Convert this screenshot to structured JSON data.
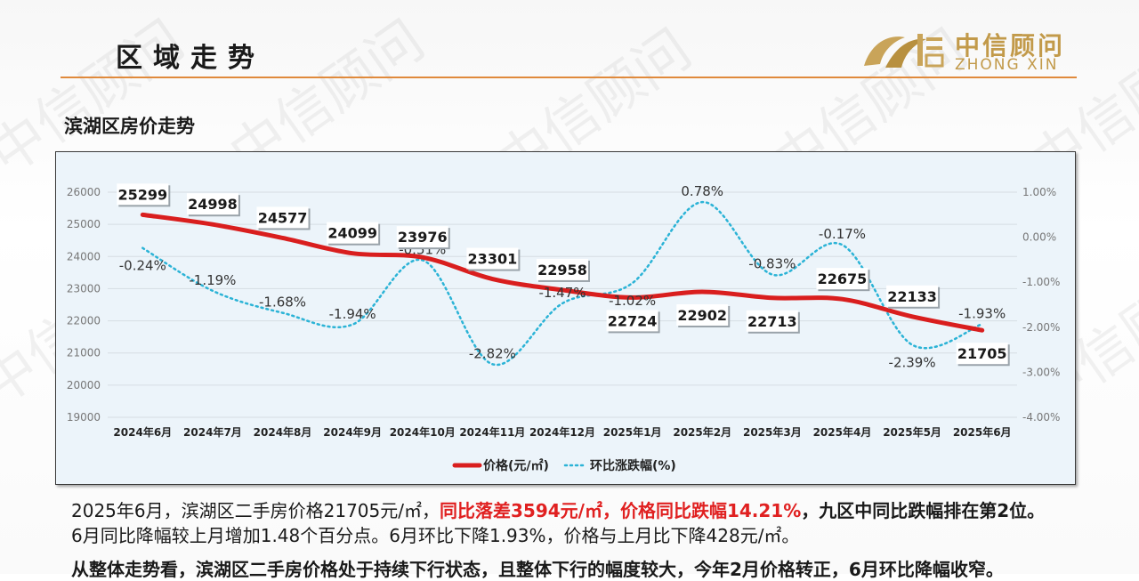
{
  "header": {
    "title": "区域走势",
    "logo_cn": "中信顾问",
    "logo_en": "ZHONG XIN",
    "watermark": "中信顾问"
  },
  "subtitle": "滨湖区房价走势",
  "chart_data": {
    "type": "line",
    "categories": [
      "2024年6月",
      "2024年7月",
      "2024年8月",
      "2024年9月",
      "2024年10月",
      "2024年11月",
      "2024年12月",
      "2025年1月",
      "2025年2月",
      "2025年3月",
      "2025年4月",
      "2025年5月",
      "2025年6月"
    ],
    "series": [
      {
        "name": "价格(元/㎡)",
        "axis": "left",
        "style": "solid",
        "color": "#d91e1e",
        "values": [
          25299,
          24998,
          24577,
          24099,
          23976,
          23301,
          22958,
          22724,
          22902,
          22713,
          22675,
          22133,
          21705
        ]
      },
      {
        "name": "环比涨跌幅(%)",
        "axis": "right",
        "style": "dotted",
        "color": "#2bb3d6",
        "values": [
          -0.24,
          -1.19,
          -1.68,
          -1.94,
          -0.51,
          -2.82,
          -1.47,
          -1.02,
          0.78,
          -0.83,
          -0.17,
          -2.39,
          -1.93
        ]
      }
    ],
    "price_labels": [
      "25299",
      "24998",
      "24577",
      "24099",
      "23976",
      "23301",
      "22958",
      "22724",
      "22902",
      "22713",
      "22675",
      "22133",
      "21705"
    ],
    "pct_labels": [
      "-0.24%",
      "-1.19%",
      "-1.68%",
      "-1.94%",
      "-0.51%",
      "-2.82%",
      "-1.47%",
      "-1.02%",
      "0.78%",
      "-0.83%",
      "-0.17%",
      "-2.39%",
      "-1.93%"
    ],
    "y_left": {
      "ylim": [
        19000,
        26000
      ],
      "ticks": [
        "19000",
        "20000",
        "21000",
        "22000",
        "23000",
        "24000",
        "25000",
        "26000"
      ]
    },
    "y_right": {
      "ylim": [
        -4.0,
        1.0
      ],
      "ticks": [
        "-4.00%",
        "-3.00%",
        "-2.00%",
        "-1.00%",
        "0.00%",
        "1.00%"
      ]
    },
    "legend_position": "bottom",
    "grid": true
  },
  "text": {
    "line1_part1": "2025年6月，滨湖区二手房价格21705元/㎡，",
    "line1_red": "同比落差3594元/㎡，价格同比跌幅14.21%",
    "line1_part2": "，九区中同比跌幅排在第2位。",
    "line2": "6月同比降幅较上月增加1.48个百分点。6月环比下降1.93%，价格与上月比下降428元/㎡。",
    "summary": "从整体走势看，滨湖区二手房价格处于持续下行状态，且整体下行的幅度较大，今年2月价格转正，6月环比降幅收窄。"
  }
}
